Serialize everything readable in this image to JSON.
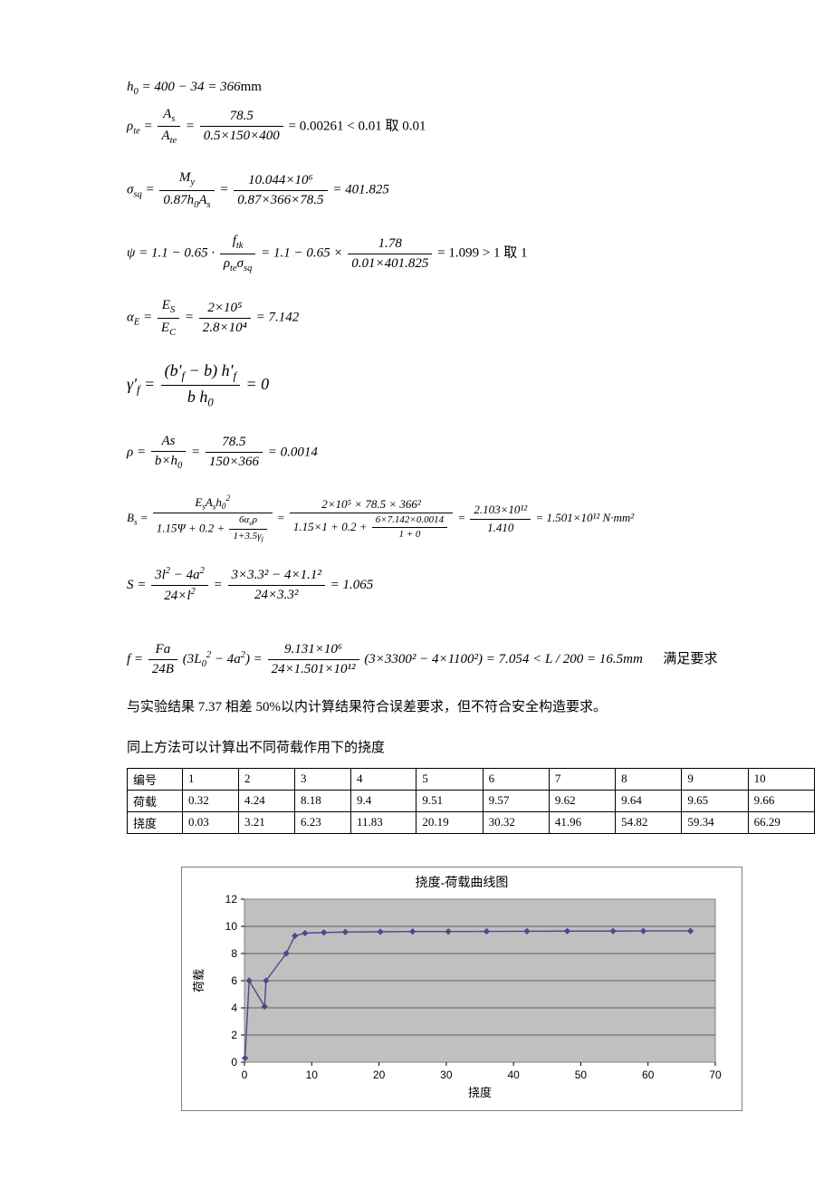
{
  "equations": {
    "h0": {
      "lhs": "h₀",
      "expr": "= 400 − 34 = 366",
      "unit": "mm"
    },
    "rho_te": {
      "lhs": "ρ_te",
      "f1n": "A_s",
      "f1d": "A_te",
      "f2n": "78.5",
      "f2d": "0.5×150×400",
      "tail": " = 0.00261 < 0.01  取 0.01"
    },
    "sigma_sq": {
      "lhs": "σ_sq",
      "f1n": "M_y",
      "f1d": "0.87h₀A_s",
      "f2n": "10.044×10⁶",
      "f2d": "0.87×366×78.5",
      "tail": " = 401.825"
    },
    "psi": {
      "lhs": "ψ",
      "pre": " = 1.1 − 0.65 · ",
      "f1n": "f_tk",
      "f1d": "ρ_te σ_sq",
      "mid": " = 1.1 − 0.65 × ",
      "f2n": "1.78",
      "f2d": "0.01×401.825",
      "tail": " = 1.099 > 1   取 1"
    },
    "alpha_e": {
      "lhs": "α_E",
      "f1n": "E_S",
      "f1d": "E_C",
      "f2n": "2×10⁵",
      "f2d": "2.8×10⁴",
      "tail": " = 7.142"
    },
    "gamma_f": {
      "lhs": "γ'_f",
      "f1n": "(b'_f − b) h'_f",
      "f1d": "b h₀",
      "tail": " = 0"
    },
    "rho": {
      "lhs": "ρ",
      "f1n": "As",
      "f1d": "b×h₀",
      "f2n": "78.5",
      "f2d": "150×366",
      "tail": " = 0.0014"
    },
    "Bs": {
      "lhs": "B_s",
      "f1n": "E_s A_s h₀²",
      "f1d_a": "1.15Ψ + 0.2 + ",
      "f1d_bn": "6α_e ρ",
      "f1d_bd": "1 + 3.5γ_f",
      "f2n": "2×10⁵ × 78.5 × 366²",
      "f2d_a": "1.15×1 + 0.2 + ",
      "f2d_bn": "6×7.142×0.0014",
      "f2d_bd": "1 + 0",
      "f3n": "2.103×10¹²",
      "f3d": "1.410",
      "tail": " = 1.501×10¹² N·mm²"
    },
    "S": {
      "lhs": "S",
      "f1n": "3l² − 4a²",
      "f1d": "24×l²",
      "f2n": "3×3.3² − 4×1.1²",
      "f2d": "24×3.3²",
      "tail": " = 1.065"
    },
    "f": {
      "lhs": "f",
      "f1n": "Fa",
      "f1d": "24B",
      "mid1": "(3L₀² − 4a²) = ",
      "f2n": "9.131×10⁶",
      "f2d": "24×1.501×10¹²",
      "mid2": "(3×3300² − 4×1100²) = 7.054 < L / 200 = 16.5mm",
      "annot": "满足要求"
    }
  },
  "paragraphs": {
    "p1": "与实验结果 7.37 相差 50%以内计算结果符合误差要求，但不符合安全构造要求。",
    "p2": "同上方法可以计算出不同荷载作用下的挠度"
  },
  "table": {
    "row_labels": [
      "编号",
      "荷载",
      "挠度"
    ],
    "columns": [
      "1",
      "2",
      "3",
      "4",
      "5",
      "6",
      "7",
      "8",
      "9",
      "10"
    ],
    "load": [
      "0.32",
      "4.24",
      "8.18",
      "9.4",
      "9.51",
      "9.57",
      "9.62",
      "9.64",
      "9.65",
      "9.66"
    ],
    "defl": [
      "0.03",
      "3.21",
      "6.23",
      "11.83",
      "20.19",
      "30.32",
      "41.96",
      "54.82",
      "59.34",
      "66.29"
    ]
  },
  "chart": {
    "title": "挠度-荷载曲线图",
    "xlabel": "挠度",
    "ylabel": "荷载",
    "xlim": [
      0,
      70
    ],
    "xtick_step": 10,
    "ylim": [
      0,
      12
    ],
    "ytick_step": 2,
    "plot_bg": "#c0c0c0",
    "outer_bg": "#ffffff",
    "grid_color": "#000000",
    "border_color": "#7f7f7f",
    "line_color": "#4a4a8a",
    "marker_face": "#4a4a8a",
    "marker_size": 3.2,
    "points": [
      [
        0.08,
        0.3
      ],
      [
        0.7,
        6.0
      ],
      [
        3.0,
        4.1
      ],
      [
        3.2,
        6.0
      ],
      [
        6.2,
        8.0
      ],
      [
        7.5,
        9.3
      ],
      [
        9.0,
        9.5
      ],
      [
        11.8,
        9.55
      ],
      [
        15.0,
        9.58
      ],
      [
        20.2,
        9.6
      ],
      [
        25.0,
        9.62
      ],
      [
        30.3,
        9.62
      ],
      [
        36.0,
        9.63
      ],
      [
        42.0,
        9.64
      ],
      [
        48.0,
        9.65
      ],
      [
        54.8,
        9.65
      ],
      [
        59.3,
        9.66
      ],
      [
        66.3,
        9.66
      ]
    ]
  }
}
